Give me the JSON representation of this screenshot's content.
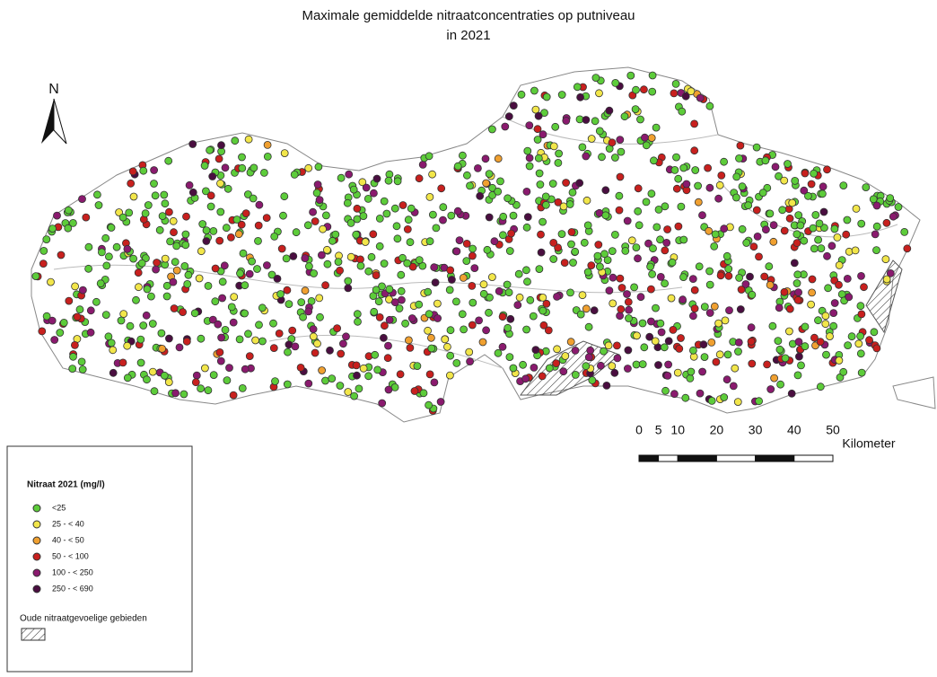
{
  "title": [
    "Maximale gemiddelde nitraatconcentraties op putniveau",
    "in 2021"
  ],
  "north_arrow": "N",
  "scale": {
    "ticks": [
      0,
      5,
      10,
      20,
      30,
      40,
      50
    ],
    "unit": "Kilometer"
  },
  "legend": {
    "title": "Nitraat 2021 (mg/l)",
    "items": [
      {
        "label": "<25",
        "color": "#5dcc3a"
      },
      {
        "label": "25 - < 40",
        "color": "#f2e64a"
      },
      {
        "label": "40 - < 50",
        "color": "#f0a030"
      },
      {
        "label": "50 - < 100",
        "color": "#c8201e"
      },
      {
        "label": "100 - < 250",
        "color": "#8a1a6e"
      },
      {
        "label": "250 - < 690",
        "color": "#4a0e40"
      }
    ],
    "area_label": "Oude nitraatgevoelige gebieden"
  }
}
